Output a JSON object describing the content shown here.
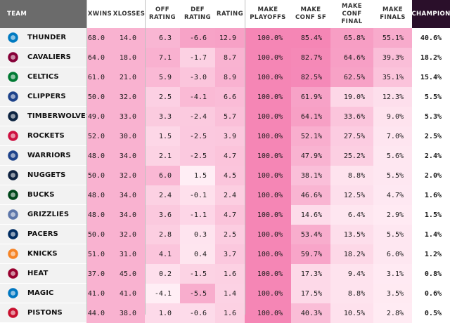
{
  "columns": [
    {
      "key": "team",
      "label": "TEAM"
    },
    {
      "key": "xwins",
      "label": "XWINS"
    },
    {
      "key": "xlosses",
      "label": "XLOSSES"
    },
    {
      "key": "off",
      "label": "OFF RATING"
    },
    {
      "key": "def",
      "label": "DEF RATING"
    },
    {
      "key": "rating",
      "label": "RATING"
    },
    {
      "key": "playoffs",
      "label": "MAKE PLAYOFFS"
    },
    {
      "key": "confsf",
      "label": "MAKE CONF SF"
    },
    {
      "key": "conffinal",
      "label": "MAKE CONF FINAL"
    },
    {
      "key": "finals",
      "label": "MAKE FINALS"
    },
    {
      "key": "champion",
      "label": "CHAMPION"
    }
  ],
  "rows": [
    {
      "team": "THUNDER",
      "logo": "thunder-logo",
      "logo_color": "#007ac1",
      "xwins": "68.0",
      "xlosses": "14.0",
      "off": "6.3",
      "def": "-6.6",
      "rating": "12.9",
      "playoffs": "100.0%",
      "confsf": "85.4%",
      "conffinal": "65.8%",
      "finals": "55.1%",
      "champion": "40.6%"
    },
    {
      "team": "CAVALIERS",
      "logo": "cavaliers-logo",
      "logo_color": "#860038",
      "xwins": "64.0",
      "xlosses": "18.0",
      "off": "7.1",
      "def": "-1.7",
      "rating": "8.7",
      "playoffs": "100.0%",
      "confsf": "82.7%",
      "conffinal": "64.6%",
      "finals": "39.3%",
      "champion": "18.2%"
    },
    {
      "team": "CELTICS",
      "logo": "celtics-logo",
      "logo_color": "#007a33",
      "xwins": "61.0",
      "xlosses": "21.0",
      "off": "5.9",
      "def": "-3.0",
      "rating": "8.9",
      "playoffs": "100.0%",
      "confsf": "82.5%",
      "conffinal": "62.5%",
      "finals": "35.1%",
      "champion": "15.4%"
    },
    {
      "team": "CLIPPERS",
      "logo": "clippers-logo",
      "logo_color": "#1d428a",
      "xwins": "50.0",
      "xlosses": "32.0",
      "off": "2.5",
      "def": "-4.1",
      "rating": "6.6",
      "playoffs": "100.0%",
      "confsf": "61.9%",
      "conffinal": "19.0%",
      "finals": "12.3%",
      "champion": "5.5%"
    },
    {
      "team": "TIMBERWOLVES",
      "logo": "timberwolves-logo",
      "logo_color": "#0c2340",
      "xwins": "49.0",
      "xlosses": "33.0",
      "off": "3.3",
      "def": "-2.4",
      "rating": "5.7",
      "playoffs": "100.0%",
      "confsf": "64.1%",
      "conffinal": "33.6%",
      "finals": "9.0%",
      "champion": "5.3%"
    },
    {
      "team": "ROCKETS",
      "logo": "rockets-logo",
      "logo_color": "#ce1141",
      "xwins": "52.0",
      "xlosses": "30.0",
      "off": "1.5",
      "def": "-2.5",
      "rating": "3.9",
      "playoffs": "100.0%",
      "confsf": "52.1%",
      "conffinal": "27.5%",
      "finals": "7.0%",
      "champion": "2.5%"
    },
    {
      "team": "WARRIORS",
      "logo": "warriors-logo",
      "logo_color": "#1d428a",
      "xwins": "48.0",
      "xlosses": "34.0",
      "off": "2.1",
      "def": "-2.5",
      "rating": "4.7",
      "playoffs": "100.0%",
      "confsf": "47.9%",
      "conffinal": "25.2%",
      "finals": "5.6%",
      "champion": "2.4%"
    },
    {
      "team": "NUGGETS",
      "logo": "nuggets-logo",
      "logo_color": "#0e2240",
      "xwins": "50.0",
      "xlosses": "32.0",
      "off": "6.0",
      "def": "1.5",
      "rating": "4.5",
      "playoffs": "100.0%",
      "confsf": "38.1%",
      "conffinal": "8.8%",
      "finals": "5.5%",
      "champion": "2.0%"
    },
    {
      "team": "BUCKS",
      "logo": "bucks-logo",
      "logo_color": "#00471b",
      "xwins": "48.0",
      "xlosses": "34.0",
      "off": "2.4",
      "def": "-0.1",
      "rating": "2.4",
      "playoffs": "100.0%",
      "confsf": "46.6%",
      "conffinal": "12.5%",
      "finals": "4.7%",
      "champion": "1.6%"
    },
    {
      "team": "GRIZZLIES",
      "logo": "grizzlies-logo",
      "logo_color": "#5d76a9",
      "xwins": "48.0",
      "xlosses": "34.0",
      "off": "3.6",
      "def": "-1.1",
      "rating": "4.7",
      "playoffs": "100.0%",
      "confsf": "14.6%",
      "conffinal": "6.4%",
      "finals": "2.9%",
      "champion": "1.5%"
    },
    {
      "team": "PACERS",
      "logo": "pacers-logo",
      "logo_color": "#002d62",
      "xwins": "50.0",
      "xlosses": "32.0",
      "off": "2.8",
      "def": "0.3",
      "rating": "2.5",
      "playoffs": "100.0%",
      "confsf": "53.4%",
      "conffinal": "13.5%",
      "finals": "5.5%",
      "champion": "1.4%"
    },
    {
      "team": "KNICKS",
      "logo": "knicks-logo",
      "logo_color": "#f58426",
      "xwins": "51.0",
      "xlosses": "31.0",
      "off": "4.1",
      "def": "0.4",
      "rating": "3.7",
      "playoffs": "100.0%",
      "confsf": "59.7%",
      "conffinal": "18.2%",
      "finals": "6.0%",
      "champion": "1.2%"
    },
    {
      "team": "HEAT",
      "logo": "heat-logo",
      "logo_color": "#98002e",
      "xwins": "37.0",
      "xlosses": "45.0",
      "off": "0.2",
      "def": "-1.5",
      "rating": "1.6",
      "playoffs": "100.0%",
      "confsf": "17.3%",
      "conffinal": "9.4%",
      "finals": "3.1%",
      "champion": "0.8%"
    },
    {
      "team": "MAGIC",
      "logo": "magic-logo",
      "logo_color": "#0077c0",
      "xwins": "41.0",
      "xlosses": "41.0",
      "off": "-4.1",
      "def": "-5.5",
      "rating": "1.4",
      "playoffs": "100.0%",
      "confsf": "17.5%",
      "conffinal": "8.8%",
      "finals": "3.5%",
      "champion": "0.6%"
    },
    {
      "team": "PISTONS",
      "logo": "pistons-logo",
      "logo_color": "#c8102e",
      "xwins": "44.0",
      "xlosses": "38.0",
      "off": "1.0",
      "def": "-0.6",
      "rating": "1.6",
      "playoffs": "100.0%",
      "confsf": "40.3%",
      "conffinal": "10.5%",
      "finals": "2.8%",
      "champion": "0.5%"
    }
  ]
}
